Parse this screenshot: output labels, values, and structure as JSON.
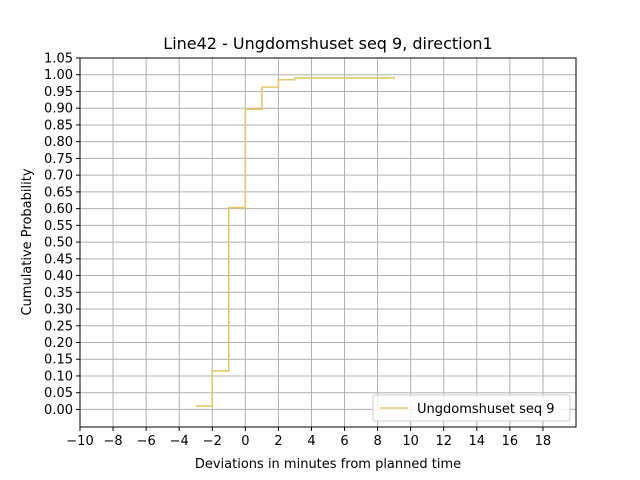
{
  "chart_data": {
    "type": "line",
    "title": "Line42 - Ungdomshuset seq 9, direction1",
    "xlabel": "Deviations in minutes from planned time",
    "ylabel": "Cumulative Probability",
    "xlim": [
      -10,
      20
    ],
    "ylim": [
      -0.0525,
      1.05
    ],
    "x_ticks": [
      "−10",
      "−8",
      "−6",
      "−4",
      "−2",
      "0",
      "2",
      "4",
      "6",
      "8",
      "10",
      "12",
      "14",
      "16",
      "18"
    ],
    "x_tick_values": [
      -10,
      -8,
      -6,
      -4,
      -2,
      0,
      2,
      4,
      6,
      8,
      10,
      12,
      14,
      16,
      18
    ],
    "y_ticks": [
      "0.00",
      "0.05",
      "0.10",
      "0.15",
      "0.20",
      "0.25",
      "0.30",
      "0.35",
      "0.40",
      "0.45",
      "0.50",
      "0.55",
      "0.60",
      "0.65",
      "0.70",
      "0.75",
      "0.80",
      "0.85",
      "0.90",
      "0.95",
      "1.00",
      "1.05"
    ],
    "y_tick_values": [
      0,
      0.05,
      0.1,
      0.15,
      0.2,
      0.25,
      0.3,
      0.35,
      0.4,
      0.45,
      0.5,
      0.55,
      0.6,
      0.65,
      0.7,
      0.75,
      0.8,
      0.85,
      0.9,
      0.95,
      1.0,
      1.05
    ],
    "grid": true,
    "legend_position": "lower-right",
    "series": [
      {
        "name": "Ungdomshuset seq 9",
        "color": "#e3c96a",
        "step": "post",
        "x": [
          -3,
          -2,
          -1,
          0,
          1,
          2,
          3,
          9
        ],
        "y": [
          0.01,
          0.115,
          0.603,
          0.897,
          0.963,
          0.985,
          0.99,
          0.995
        ]
      }
    ]
  }
}
